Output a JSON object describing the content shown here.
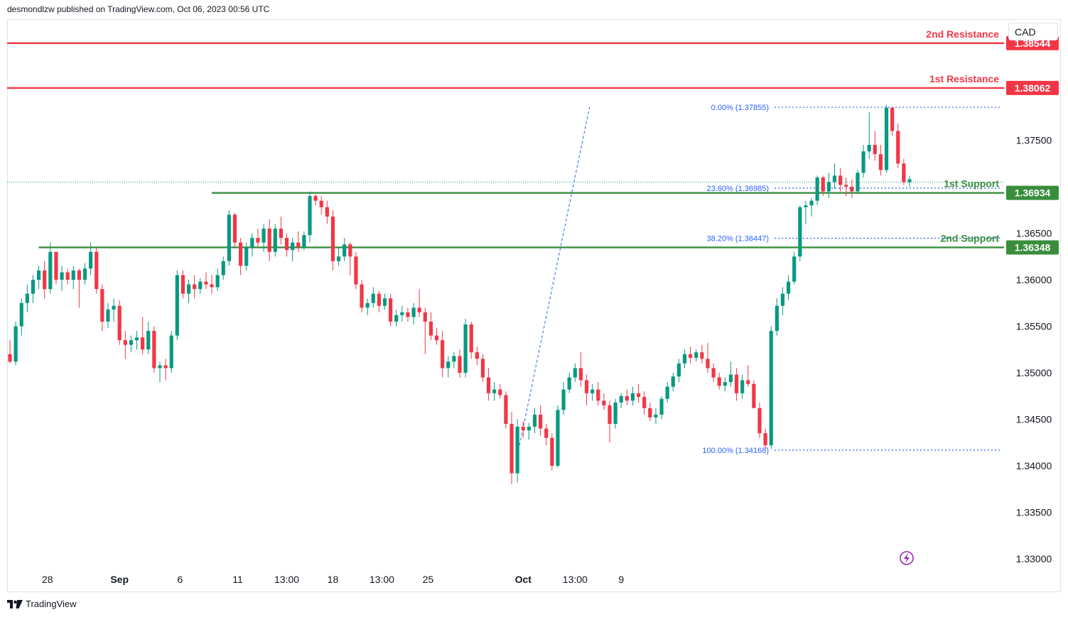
{
  "header": {
    "published_by": "desmondlzw published on TradingView.com, Oct 06, 2023 00:56 UTC"
  },
  "currency_label": "CAD",
  "footer": {
    "brand": "TradingView"
  },
  "colors": {
    "resistance": "#f23645",
    "support": "#388e3c",
    "fib": "#2962ff",
    "fib_text": "#2962ff",
    "up": "#089981",
    "down": "#f23645"
  },
  "chart_data": {
    "type": "candlestick",
    "y_ticks": [
      "1.37500",
      "1.36500",
      "1.36000",
      "1.35500",
      "1.35000",
      "1.34500",
      "1.34000",
      "1.33500",
      "1.33000"
    ],
    "y_range": [
      1.3285,
      1.3905
    ],
    "x_ticks": [
      {
        "label": "28",
        "i": 6.5
      },
      {
        "label": "Sep",
        "i": 19.0
      },
      {
        "label": "6",
        "i": 29.5
      },
      {
        "label": "11",
        "i": 39.5
      },
      {
        "label": "13:00",
        "i": 48.0
      },
      {
        "label": "18",
        "i": 56.0
      },
      {
        "label": "13:00",
        "i": 64.5
      },
      {
        "label": "25",
        "i": 72.5
      },
      {
        "label": "Oct",
        "i": 89.0
      },
      {
        "label": "13:00",
        "i": 98.0
      },
      {
        "label": "9",
        "i": 106.0
      }
    ],
    "levels": [
      {
        "name": "2nd Resistance",
        "value": 1.38544,
        "label": "1.38544",
        "kind": "resistance",
        "x_from_i": -1
      },
      {
        "name": "1st Resistance",
        "value": 1.38062,
        "label": "1.38062",
        "kind": "resistance",
        "x_from_i": -1
      },
      {
        "name": "1st Support",
        "value": 1.36934,
        "label": "1.36934",
        "kind": "support",
        "x_from_i": 35
      },
      {
        "name": "2nd Support",
        "value": 1.36348,
        "label": "1.36348",
        "kind": "support",
        "x_from_i": 5
      }
    ],
    "fib_levels": [
      {
        "label": "0.00% (1.37855)",
        "value": 1.37855
      },
      {
        "label": "23.60% (1.36985)",
        "value": 1.36985
      },
      {
        "label": "38.20% (1.36447)",
        "value": 1.36447
      },
      {
        "label": "100.00% (1.34168)",
        "value": 1.34168
      }
    ],
    "fib_anchor": {
      "from_i": 88.2,
      "from_v": 1.34168,
      "to_i": 100.5,
      "to_v": 1.37855
    },
    "last_price_line": 1.3705,
    "candles": [
      {
        "o": 1.352,
        "h": 1.3535,
        "l": 1.351,
        "c": 1.3512
      },
      {
        "o": 1.3512,
        "h": 1.3555,
        "l": 1.3508,
        "c": 1.355
      },
      {
        "o": 1.355,
        "h": 1.358,
        "l": 1.354,
        "c": 1.3575
      },
      {
        "o": 1.3575,
        "h": 1.3595,
        "l": 1.3565,
        "c": 1.3585
      },
      {
        "o": 1.3585,
        "h": 1.3605,
        "l": 1.3575,
        "c": 1.36
      },
      {
        "o": 1.36,
        "h": 1.3615,
        "l": 1.359,
        "c": 1.361
      },
      {
        "o": 1.361,
        "h": 1.362,
        "l": 1.358,
        "c": 1.359
      },
      {
        "o": 1.359,
        "h": 1.364,
        "l": 1.3585,
        "c": 1.363
      },
      {
        "o": 1.363,
        "h": 1.363,
        "l": 1.3595,
        "c": 1.36
      },
      {
        "o": 1.36,
        "h": 1.3615,
        "l": 1.3588,
        "c": 1.3608
      },
      {
        "o": 1.3608,
        "h": 1.3612,
        "l": 1.3595,
        "c": 1.36
      },
      {
        "o": 1.36,
        "h": 1.3615,
        "l": 1.359,
        "c": 1.361
      },
      {
        "o": 1.361,
        "h": 1.3612,
        "l": 1.357,
        "c": 1.36
      },
      {
        "o": 1.36,
        "h": 1.3618,
        "l": 1.3595,
        "c": 1.3612
      },
      {
        "o": 1.3612,
        "h": 1.364,
        "l": 1.3605,
        "c": 1.363
      },
      {
        "o": 1.363,
        "h": 1.3635,
        "l": 1.3585,
        "c": 1.359
      },
      {
        "o": 1.359,
        "h": 1.3595,
        "l": 1.3545,
        "c": 1.3555
      },
      {
        "o": 1.3555,
        "h": 1.3575,
        "l": 1.3548,
        "c": 1.3568
      },
      {
        "o": 1.3568,
        "h": 1.358,
        "l": 1.3555,
        "c": 1.3572
      },
      {
        "o": 1.3572,
        "h": 1.3578,
        "l": 1.353,
        "c": 1.3535
      },
      {
        "o": 1.3535,
        "h": 1.3545,
        "l": 1.3515,
        "c": 1.353
      },
      {
        "o": 1.353,
        "h": 1.354,
        "l": 1.3522,
        "c": 1.3535
      },
      {
        "o": 1.3535,
        "h": 1.3545,
        "l": 1.3525,
        "c": 1.3538
      },
      {
        "o": 1.3538,
        "h": 1.356,
        "l": 1.352,
        "c": 1.3525
      },
      {
        "o": 1.3525,
        "h": 1.3555,
        "l": 1.352,
        "c": 1.3545
      },
      {
        "o": 1.3545,
        "h": 1.355,
        "l": 1.35,
        "c": 1.3505
      },
      {
        "o": 1.3505,
        "h": 1.3512,
        "l": 1.349,
        "c": 1.3508
      },
      {
        "o": 1.3508,
        "h": 1.3515,
        "l": 1.3492,
        "c": 1.3505
      },
      {
        "o": 1.3505,
        "h": 1.3545,
        "l": 1.35,
        "c": 1.354
      },
      {
        "o": 1.354,
        "h": 1.361,
        "l": 1.3535,
        "c": 1.3605
      },
      {
        "o": 1.3605,
        "h": 1.361,
        "l": 1.358,
        "c": 1.3585
      },
      {
        "o": 1.3585,
        "h": 1.36,
        "l": 1.3575,
        "c": 1.3595
      },
      {
        "o": 1.3595,
        "h": 1.3605,
        "l": 1.358,
        "c": 1.359
      },
      {
        "o": 1.359,
        "h": 1.3602,
        "l": 1.3585,
        "c": 1.3598
      },
      {
        "o": 1.3598,
        "h": 1.3608,
        "l": 1.359,
        "c": 1.3595
      },
      {
        "o": 1.3595,
        "h": 1.3605,
        "l": 1.3585,
        "c": 1.3592
      },
      {
        "o": 1.3592,
        "h": 1.3612,
        "l": 1.3588,
        "c": 1.3605
      },
      {
        "o": 1.3605,
        "h": 1.3625,
        "l": 1.36,
        "c": 1.362
      },
      {
        "o": 1.362,
        "h": 1.3675,
        "l": 1.3615,
        "c": 1.367
      },
      {
        "o": 1.367,
        "h": 1.3672,
        "l": 1.3635,
        "c": 1.364
      },
      {
        "o": 1.364,
        "h": 1.3645,
        "l": 1.3605,
        "c": 1.3615
      },
      {
        "o": 1.3615,
        "h": 1.364,
        "l": 1.361,
        "c": 1.3635
      },
      {
        "o": 1.3635,
        "h": 1.365,
        "l": 1.3625,
        "c": 1.3645
      },
      {
        "o": 1.3645,
        "h": 1.3655,
        "l": 1.3635,
        "c": 1.364
      },
      {
        "o": 1.364,
        "h": 1.366,
        "l": 1.363,
        "c": 1.3655
      },
      {
        "o": 1.3655,
        "h": 1.3665,
        "l": 1.362,
        "c": 1.363
      },
      {
        "o": 1.363,
        "h": 1.366,
        "l": 1.3625,
        "c": 1.3655
      },
      {
        "o": 1.3655,
        "h": 1.3668,
        "l": 1.3638,
        "c": 1.3645
      },
      {
        "o": 1.3645,
        "h": 1.365,
        "l": 1.3625,
        "c": 1.3632
      },
      {
        "o": 1.3632,
        "h": 1.3645,
        "l": 1.362,
        "c": 1.364
      },
      {
        "o": 1.364,
        "h": 1.3652,
        "l": 1.363,
        "c": 1.3635
      },
      {
        "o": 1.3635,
        "h": 1.3652,
        "l": 1.3632,
        "c": 1.3648
      },
      {
        "o": 1.3648,
        "h": 1.3695,
        "l": 1.364,
        "c": 1.369
      },
      {
        "o": 1.369,
        "h": 1.3692,
        "l": 1.368,
        "c": 1.3685
      },
      {
        "o": 1.3685,
        "h": 1.369,
        "l": 1.367,
        "c": 1.3678
      },
      {
        "o": 1.3678,
        "h": 1.3685,
        "l": 1.366,
        "c": 1.3668
      },
      {
        "o": 1.3668,
        "h": 1.3675,
        "l": 1.361,
        "c": 1.362
      },
      {
        "o": 1.362,
        "h": 1.3635,
        "l": 1.3615,
        "c": 1.3625
      },
      {
        "o": 1.3625,
        "h": 1.3645,
        "l": 1.362,
        "c": 1.3638
      },
      {
        "o": 1.3638,
        "h": 1.364,
        "l": 1.3605,
        "c": 1.3625
      },
      {
        "o": 1.3625,
        "h": 1.363,
        "l": 1.359,
        "c": 1.3595
      },
      {
        "o": 1.3595,
        "h": 1.36,
        "l": 1.3565,
        "c": 1.357
      },
      {
        "o": 1.357,
        "h": 1.358,
        "l": 1.3562,
        "c": 1.3575
      },
      {
        "o": 1.3575,
        "h": 1.3592,
        "l": 1.357,
        "c": 1.3585
      },
      {
        "o": 1.3585,
        "h": 1.3588,
        "l": 1.3565,
        "c": 1.3572
      },
      {
        "o": 1.3572,
        "h": 1.3585,
        "l": 1.3568,
        "c": 1.358
      },
      {
        "o": 1.358,
        "h": 1.3585,
        "l": 1.355,
        "c": 1.3555
      },
      {
        "o": 1.3555,
        "h": 1.3568,
        "l": 1.355,
        "c": 1.3562
      },
      {
        "o": 1.3562,
        "h": 1.3572,
        "l": 1.3555,
        "c": 1.3565
      },
      {
        "o": 1.3565,
        "h": 1.357,
        "l": 1.3555,
        "c": 1.356
      },
      {
        "o": 1.356,
        "h": 1.3575,
        "l": 1.3552,
        "c": 1.357
      },
      {
        "o": 1.357,
        "h": 1.359,
        "l": 1.356,
        "c": 1.3565
      },
      {
        "o": 1.3565,
        "h": 1.357,
        "l": 1.352,
        "c": 1.3555
      },
      {
        "o": 1.3555,
        "h": 1.3565,
        "l": 1.3535,
        "c": 1.354
      }
    ],
    "candles_b": [
      {
        "o": 1.354,
        "h": 1.3548,
        "l": 1.353,
        "c": 1.3535
      },
      {
        "o": 1.3535,
        "h": 1.3545,
        "l": 1.3495,
        "c": 1.3505
      },
      {
        "o": 1.3505,
        "h": 1.3518,
        "l": 1.3495,
        "c": 1.3512
      },
      {
        "o": 1.3512,
        "h": 1.3522,
        "l": 1.3505,
        "c": 1.3518
      },
      {
        "o": 1.3518,
        "h": 1.3525,
        "l": 1.3495,
        "c": 1.35
      },
      {
        "o": 1.35,
        "h": 1.3558,
        "l": 1.3495,
        "c": 1.3552
      },
      {
        "o": 1.3552,
        "h": 1.3555,
        "l": 1.3515,
        "c": 1.3522
      },
      {
        "o": 1.3522,
        "h": 1.3528,
        "l": 1.3508,
        "c": 1.3515
      },
      {
        "o": 1.3515,
        "h": 1.352,
        "l": 1.349,
        "c": 1.3495
      },
      {
        "o": 1.3495,
        "h": 1.3505,
        "l": 1.347,
        "c": 1.3478
      },
      {
        "o": 1.3478,
        "h": 1.349,
        "l": 1.347,
        "c": 1.3482
      },
      {
        "o": 1.3482,
        "h": 1.3488,
        "l": 1.3472,
        "c": 1.3476
      },
      {
        "o": 1.3476,
        "h": 1.348,
        "l": 1.344,
        "c": 1.3445
      },
      {
        "o": 1.3445,
        "h": 1.3458,
        "l": 1.338,
        "c": 1.3392
      },
      {
        "o": 1.3392,
        "h": 1.345,
        "l": 1.3382,
        "c": 1.3442
      },
      {
        "o": 1.3442,
        "h": 1.3448,
        "l": 1.343,
        "c": 1.3438
      },
      {
        "o": 1.3438,
        "h": 1.3446,
        "l": 1.3428,
        "c": 1.3442
      },
      {
        "o": 1.3442,
        "h": 1.3462,
        "l": 1.3435,
        "c": 1.3455
      },
      {
        "o": 1.3455,
        "h": 1.3465,
        "l": 1.3432,
        "c": 1.344
      },
      {
        "o": 1.344,
        "h": 1.3445,
        "l": 1.3422,
        "c": 1.343
      },
      {
        "o": 1.343,
        "h": 1.3435,
        "l": 1.3395,
        "c": 1.34
      },
      {
        "o": 1.34,
        "h": 1.3465,
        "l": 1.3398,
        "c": 1.346
      },
      {
        "o": 1.346,
        "h": 1.349,
        "l": 1.3455,
        "c": 1.3482
      },
      {
        "o": 1.3482,
        "h": 1.35,
        "l": 1.3478,
        "c": 1.3495
      },
      {
        "o": 1.3495,
        "h": 1.351,
        "l": 1.349,
        "c": 1.3505
      },
      {
        "o": 1.3505,
        "h": 1.3522,
        "l": 1.3485,
        "c": 1.3492
      },
      {
        "o": 1.3492,
        "h": 1.3498,
        "l": 1.3465,
        "c": 1.3478
      },
      {
        "o": 1.3478,
        "h": 1.3488,
        "l": 1.347,
        "c": 1.3482
      },
      {
        "o": 1.3482,
        "h": 1.349,
        "l": 1.3465,
        "c": 1.347
      },
      {
        "o": 1.347,
        "h": 1.3478,
        "l": 1.346,
        "c": 1.3465
      },
      {
        "o": 1.3465,
        "h": 1.347,
        "l": 1.3425,
        "c": 1.3445
      },
      {
        "o": 1.3445,
        "h": 1.3472,
        "l": 1.344,
        "c": 1.3468
      },
      {
        "o": 1.3468,
        "h": 1.3478,
        "l": 1.3462,
        "c": 1.3475
      },
      {
        "o": 1.3475,
        "h": 1.3482,
        "l": 1.3465,
        "c": 1.347
      },
      {
        "o": 1.347,
        "h": 1.3485,
        "l": 1.3465,
        "c": 1.3478
      },
      {
        "o": 1.3478,
        "h": 1.3488,
        "l": 1.3468,
        "c": 1.3474
      },
      {
        "o": 1.3474,
        "h": 1.348,
        "l": 1.3455,
        "c": 1.3462
      },
      {
        "o": 1.3462,
        "h": 1.3468,
        "l": 1.3448,
        "c": 1.3452
      },
      {
        "o": 1.3452,
        "h": 1.3462,
        "l": 1.3445,
        "c": 1.3455
      },
      {
        "o": 1.3455,
        "h": 1.3475,
        "l": 1.345,
        "c": 1.3472
      },
      {
        "o": 1.3472,
        "h": 1.349,
        "l": 1.3468,
        "c": 1.3485
      },
      {
        "o": 1.3485,
        "h": 1.35,
        "l": 1.348,
        "c": 1.3496
      },
      {
        "o": 1.3496,
        "h": 1.3515,
        "l": 1.349,
        "c": 1.351
      },
      {
        "o": 1.351,
        "h": 1.3525,
        "l": 1.3505,
        "c": 1.352
      },
      {
        "o": 1.352,
        "h": 1.3528,
        "l": 1.351,
        "c": 1.3516
      },
      {
        "o": 1.3516,
        "h": 1.3525,
        "l": 1.3512,
        "c": 1.3522
      },
      {
        "o": 1.3522,
        "h": 1.353,
        "l": 1.351,
        "c": 1.3515
      },
      {
        "o": 1.3515,
        "h": 1.3532,
        "l": 1.35,
        "c": 1.3505
      },
      {
        "o": 1.3505,
        "h": 1.351,
        "l": 1.349,
        "c": 1.3495
      },
      {
        "o": 1.3495,
        "h": 1.35,
        "l": 1.3482,
        "c": 1.3486
      },
      {
        "o": 1.3486,
        "h": 1.3495,
        "l": 1.348,
        "c": 1.349
      },
      {
        "o": 1.349,
        "h": 1.3512,
        "l": 1.3485,
        "c": 1.3498
      },
      {
        "o": 1.3498,
        "h": 1.3505,
        "l": 1.347,
        "c": 1.3478
      },
      {
        "o": 1.3478,
        "h": 1.3498,
        "l": 1.3472,
        "c": 1.3492
      },
      {
        "o": 1.3492,
        "h": 1.3508,
        "l": 1.3485,
        "c": 1.3488
      },
      {
        "o": 1.3488,
        "h": 1.3492,
        "l": 1.3468,
        "c": 1.3462
      },
      {
        "o": 1.3462,
        "h": 1.3468,
        "l": 1.343,
        "c": 1.3435
      },
      {
        "o": 1.3435,
        "h": 1.344,
        "l": 1.3418,
        "c": 1.3422
      },
      {
        "o": 1.3422,
        "h": 1.355,
        "l": 1.3418,
        "c": 1.3545
      },
      {
        "o": 1.3545,
        "h": 1.358,
        "l": 1.354,
        "c": 1.3572
      },
      {
        "o": 1.3572,
        "h": 1.3592,
        "l": 1.3562,
        "c": 1.3585
      },
      {
        "o": 1.3585,
        "h": 1.3605,
        "l": 1.3578,
        "c": 1.3598
      },
      {
        "o": 1.3598,
        "h": 1.363,
        "l": 1.3595,
        "c": 1.3625
      },
      {
        "o": 1.3625,
        "h": 1.368,
        "l": 1.362,
        "c": 1.3678
      },
      {
        "o": 1.3678,
        "h": 1.3685,
        "l": 1.366,
        "c": 1.368
      },
      {
        "o": 1.368,
        "h": 1.3688,
        "l": 1.3668,
        "c": 1.3685
      },
      {
        "o": 1.3685,
        "h": 1.3712,
        "l": 1.368,
        "c": 1.371
      },
      {
        "o": 1.371,
        "h": 1.3712,
        "l": 1.369,
        "c": 1.3695
      },
      {
        "o": 1.3695,
        "h": 1.3715,
        "l": 1.3688,
        "c": 1.3705
      },
      {
        "o": 1.3705,
        "h": 1.3725,
        "l": 1.3698,
        "c": 1.3712
      },
      {
        "o": 1.3712,
        "h": 1.372,
        "l": 1.3695,
        "c": 1.3702
      },
      {
        "o": 1.3702,
        "h": 1.371,
        "l": 1.369,
        "c": 1.37
      },
      {
        "o": 1.37,
        "h": 1.3708,
        "l": 1.3688,
        "c": 1.3695
      },
      {
        "o": 1.3695,
        "h": 1.3718,
        "l": 1.3692,
        "c": 1.3715
      },
      {
        "o": 1.3715,
        "h": 1.3745,
        "l": 1.371,
        "c": 1.3738
      },
      {
        "o": 1.3738,
        "h": 1.378,
        "l": 1.373,
        "c": 1.3745
      },
      {
        "o": 1.3745,
        "h": 1.376,
        "l": 1.3728,
        "c": 1.3735
      },
      {
        "o": 1.3735,
        "h": 1.3745,
        "l": 1.3712,
        "c": 1.3718
      },
      {
        "o": 1.3718,
        "h": 1.3788,
        "l": 1.3715,
        "c": 1.3785
      },
      {
        "o": 1.3785,
        "h": 1.3786,
        "l": 1.3755,
        "c": 1.376
      },
      {
        "o": 1.376,
        "h": 1.3768,
        "l": 1.372,
        "c": 1.3725
      },
      {
        "o": 1.3725,
        "h": 1.373,
        "l": 1.3702,
        "c": 1.3705
      },
      {
        "o": 1.3705,
        "h": 1.3712,
        "l": 1.37,
        "c": 1.3708
      }
    ]
  }
}
